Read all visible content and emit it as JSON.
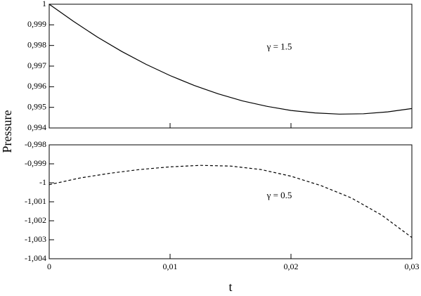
{
  "chart_data": [
    {
      "type": "line",
      "ylabel": "Pressure",
      "annotation": "γ = 1.5",
      "color": "#000000",
      "dashed": false,
      "x": [
        0,
        0.002,
        0.004,
        0.006,
        0.008,
        0.01,
        0.012,
        0.014,
        0.016,
        0.018,
        0.02,
        0.022,
        0.024,
        0.026,
        0.028,
        0.03
      ],
      "values": [
        1.0,
        0.99917,
        0.9984,
        0.99771,
        0.99709,
        0.99654,
        0.99606,
        0.99565,
        0.99531,
        0.99505,
        0.99485,
        0.99473,
        0.99467,
        0.99469,
        0.99478,
        0.99494
      ],
      "xlim": [
        0,
        0.03
      ],
      "ylim": [
        0.994,
        1
      ],
      "yticks": [
        {
          "value": 0.994,
          "label": "0,994"
        },
        {
          "value": 0.995,
          "label": "0,995"
        },
        {
          "value": 0.996,
          "label": "0,996"
        },
        {
          "value": 0.997,
          "label": "0,997"
        },
        {
          "value": 0.998,
          "label": "0,998"
        },
        {
          "value": 0.999,
          "label": "0,999"
        },
        1
      ]
    },
    {
      "type": "line",
      "xlabel": "t",
      "annotation": "γ = 0.5",
      "color": "#000000",
      "dashed": true,
      "x": [
        0,
        0.0025,
        0.005,
        0.0075,
        0.01,
        0.0125,
        0.015,
        0.0175,
        0.02,
        0.0225,
        0.025,
        0.0275,
        0.03
      ],
      "values": [
        -1.0001,
        -0.99975,
        -0.9995,
        -0.9993,
        -0.99916,
        -0.99908,
        -0.99912,
        -0.9993,
        -0.99965,
        -1.00015,
        -1.0008,
        -1.0017,
        -1.00288
      ],
      "xlim": [
        0,
        0.03
      ],
      "ylim": [
        -1.004,
        -0.998
      ],
      "xticks": [
        0,
        {
          "value": 0.01,
          "label": "0,01"
        },
        {
          "value": 0.02,
          "label": "0,02"
        },
        {
          "value": 0.03,
          "label": "0,03"
        }
      ],
      "yticks": [
        {
          "value": -1.004,
          "label": "-1,004"
        },
        {
          "value": -1.003,
          "label": "-1,003"
        },
        {
          "value": -1.002,
          "label": "-1,002"
        },
        {
          "value": -1.001,
          "label": "-1,001"
        },
        -1,
        {
          "value": -0.999,
          "label": "-0,999"
        },
        {
          "value": -0.998,
          "label": "-0,998"
        }
      ]
    }
  ]
}
